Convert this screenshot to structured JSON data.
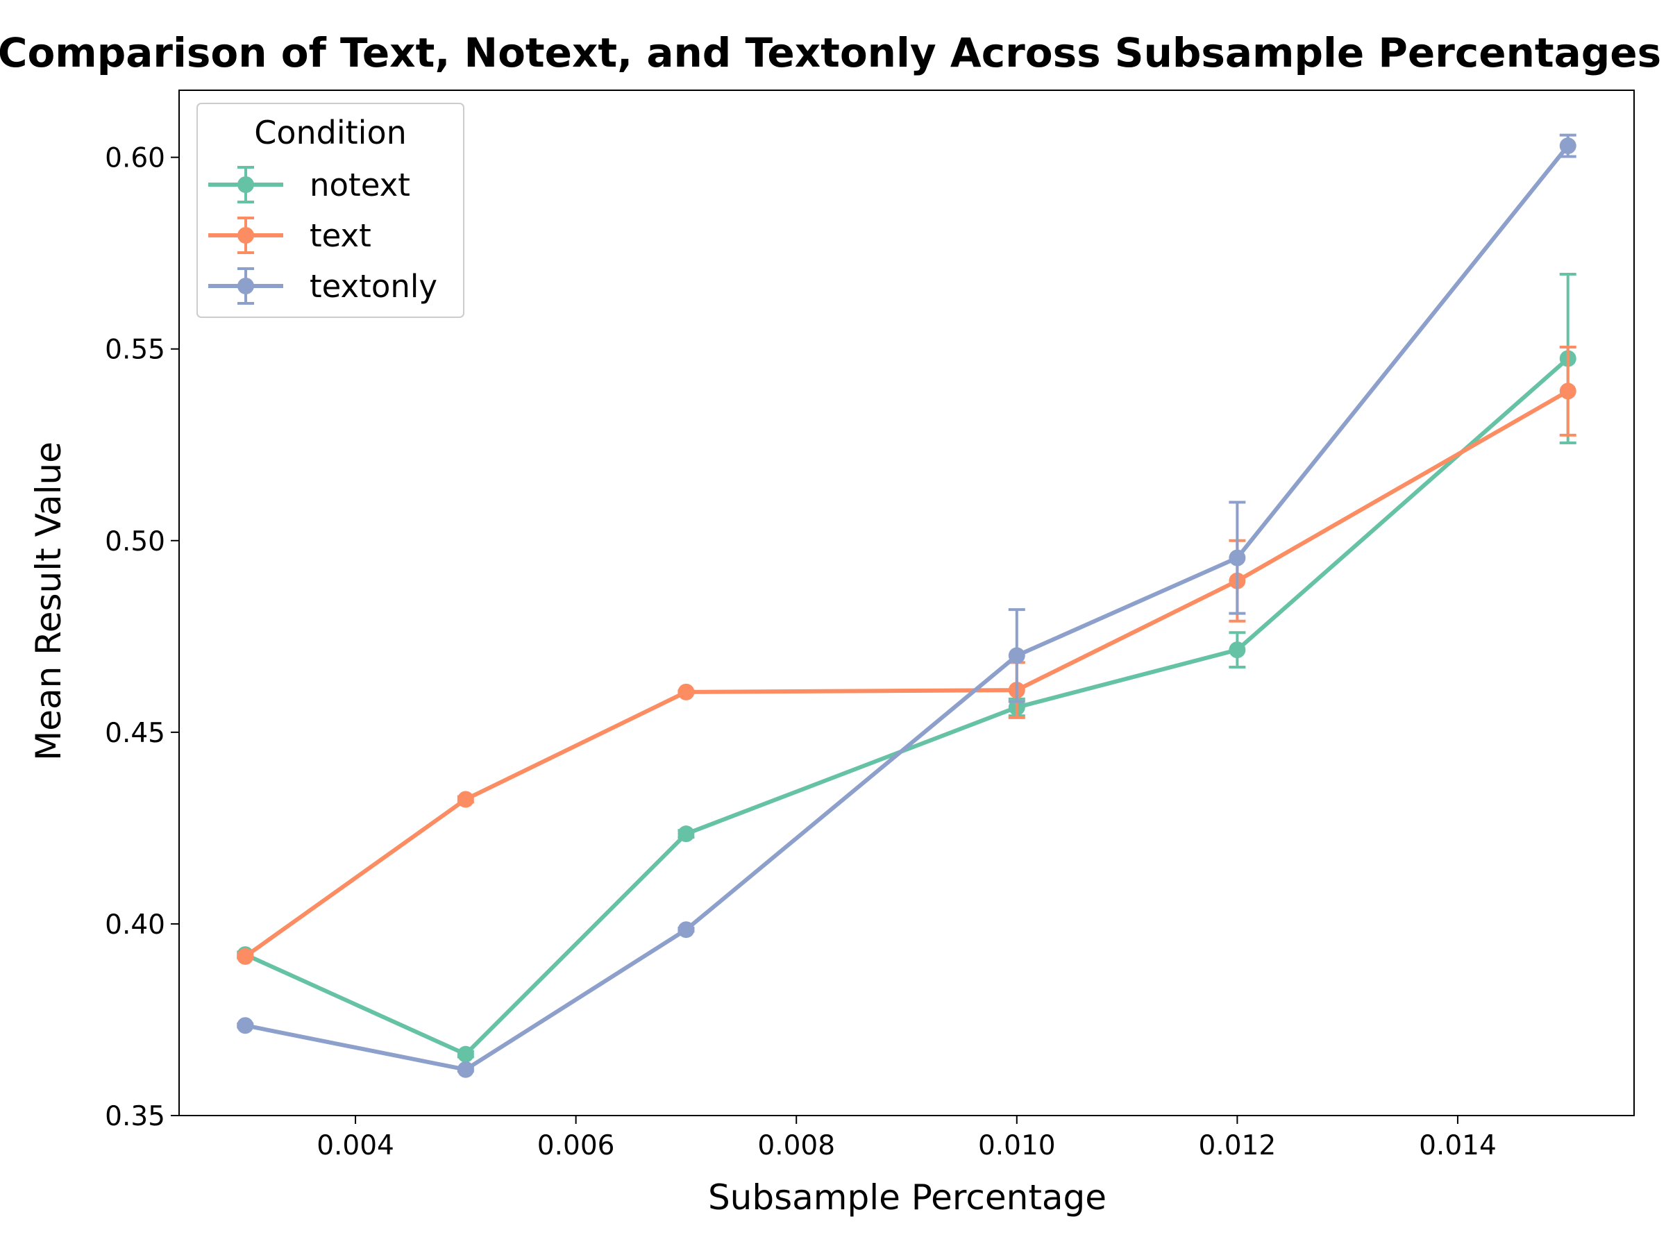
{
  "chart_data": {
    "type": "line",
    "title": "Comparison of Text, Notext, and Textonly Across Subsample Percentages",
    "xlabel": "Subsample Percentage",
    "ylabel": "Mean Result Value",
    "xlim": [
      0.0024,
      0.0156
    ],
    "ylim": [
      0.35,
      0.6175
    ],
    "x_ticks": [
      0.004,
      0.006,
      0.008,
      0.01,
      0.012,
      0.014
    ],
    "x_tick_labels": [
      "0.004",
      "0.006",
      "0.008",
      "0.010",
      "0.012",
      "0.014"
    ],
    "y_ticks": [
      0.35,
      0.4,
      0.45,
      0.5,
      0.55,
      0.6
    ],
    "y_tick_labels": [
      "0.35",
      "0.40",
      "0.45",
      "0.50",
      "0.55",
      "0.60"
    ],
    "grid": false,
    "legend": {
      "title": "Condition",
      "placement": "top-left"
    },
    "x": [
      0.003,
      0.005,
      0.007,
      0.01,
      0.012,
      0.015
    ],
    "series": [
      {
        "name": "notext",
        "color": "#66c2a5",
        "values": [
          0.392,
          0.366,
          0.4235,
          0.4565,
          0.4715,
          0.5475
        ],
        "errors": [
          0.0007,
          0.0007,
          0.0009,
          0.0022,
          0.0045,
          0.022
        ]
      },
      {
        "name": "text",
        "color": "#fc8d62",
        "values": [
          0.3915,
          0.4325,
          0.4605,
          0.461,
          0.4895,
          0.539
        ],
        "errors": [
          0.0004,
          0.0007,
          0.0003,
          0.0072,
          0.0105,
          0.0115
        ]
      },
      {
        "name": "textonly",
        "color": "#8da0cb",
        "values": [
          0.3735,
          0.362,
          0.3985,
          0.47,
          0.4955,
          0.603
        ],
        "errors": [
          0.0004,
          0.0004,
          0.0004,
          0.012,
          0.0145,
          0.0028
        ]
      }
    ]
  }
}
